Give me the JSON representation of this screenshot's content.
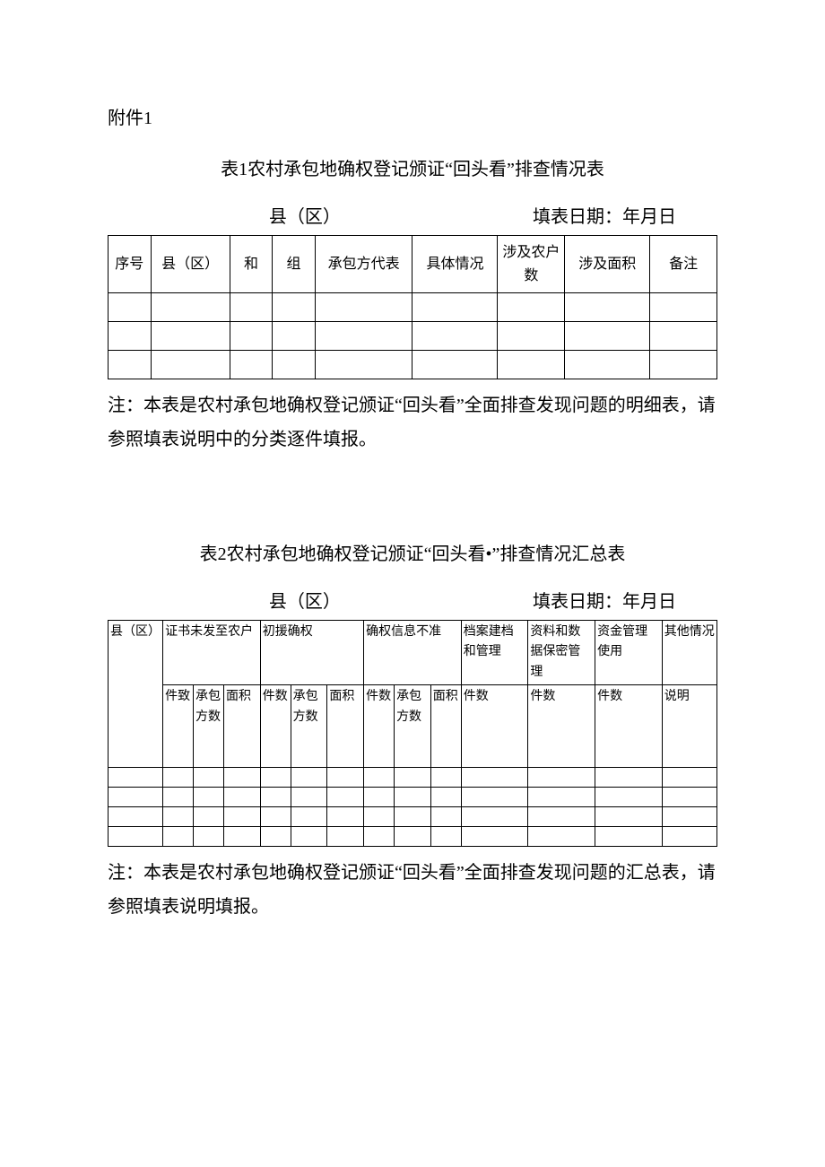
{
  "attachment": "附件1",
  "table1": {
    "title": "表1农村承包地确权登记颁证“回头看”排查情况表",
    "sub_left": "县（区）",
    "sub_right": "填表日期：年月日",
    "headers": [
      "序号",
      "县（区）",
      "和",
      "组",
      "承包方代表",
      "具体情况",
      "涉及农户数",
      "涉及面积",
      "备注"
    ],
    "widths": [
      "7%",
      "13%",
      "7%",
      "7%",
      "16%",
      "14%",
      "11%",
      "14%",
      "11%"
    ],
    "empty_rows": 3,
    "note": "注：本表是农村承包地确权登记颁证“回头看”全面排查发现问题的明细表，请参照填表说明中的分类逐件填报。"
  },
  "table2": {
    "title": "表2农村承包地确权登记颁证“回头看•”排查情况汇总表",
    "sub_left": "县（区）",
    "sub_right": "填表日期：年月日",
    "row1": {
      "county": "县（区）",
      "cert": "证书未发至农户",
      "init": "初援确权",
      "inacc": "确权信息不准",
      "archive": "档案建档和管理",
      "data": "资料和数据保密管理",
      "fund": "资金管理使用",
      "other": "其他情况"
    },
    "row2": {
      "jianzhi": "件致",
      "cbf": "承包方数",
      "mianji": "面积",
      "jianshu": "件数",
      "mj": "面积",
      "shuoming": "说明"
    },
    "empty_rows": 4,
    "note": "注：本表是农村承包地确权登记颁证“回头看”全面排查发现问题的汇总表，请参照填表说明填报。"
  }
}
